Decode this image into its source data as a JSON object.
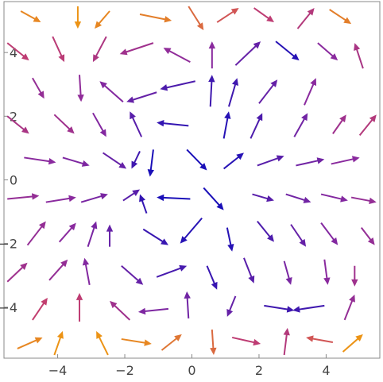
{
  "chart_data": {
    "type": "vector-field",
    "title": "",
    "xlabel": "",
    "ylabel": "",
    "xlim": [
      -5.6,
      5.6
    ],
    "ylim": [
      -5.6,
      5.6
    ],
    "x_ticks": [
      {
        "value": -4,
        "label": "−4"
      },
      {
        "value": -2,
        "label": "−2"
      },
      {
        "value": 0,
        "label": "0"
      },
      {
        "value": 2,
        "label": "2"
      },
      {
        "value": 4,
        "label": "4"
      }
    ],
    "y_ticks": [
      {
        "value": -4,
        "label": "−4"
      },
      {
        "value": -2,
        "label": "−2"
      },
      {
        "value": 0,
        "label": "0"
      },
      {
        "value": 2,
        "label": "2"
      },
      {
        "value": 4,
        "label": "4"
      }
    ],
    "grid": false,
    "color_scale": {
      "note": "arrow colour varies with vector magnitude",
      "low": "#1a0fb8",
      "mid": "#8a2a9e",
      "high_mid": "#c8406a",
      "high": "#f5a800"
    },
    "vectors": [
      {
        "x0": -5.1,
        "y0": 5.3,
        "x1": -4.5,
        "y1": 4.95,
        "m": 0.92
      },
      {
        "x0": -3.4,
        "y0": 5.45,
        "x1": -3.4,
        "y1": 4.75,
        "m": 0.95
      },
      {
        "x0": -2.45,
        "y0": 5.3,
        "x1": -2.9,
        "y1": 4.75,
        "m": 0.92
      },
      {
        "x0": -1.55,
        "y0": 5.2,
        "x1": -0.6,
        "y1": 5.0,
        "m": 0.9
      },
      {
        "x0": -0.1,
        "y0": 5.45,
        "x1": 0.35,
        "y1": 4.7,
        "m": 0.85
      },
      {
        "x0": 0.75,
        "y0": 4.95,
        "x1": 1.4,
        "y1": 5.4,
        "m": 0.8
      },
      {
        "x0": 1.85,
        "y0": 5.4,
        "x1": 2.45,
        "y1": 4.95,
        "m": 0.7
      },
      {
        "x0": 3.15,
        "y0": 4.75,
        "x1": 3.65,
        "y1": 5.4,
        "m": 0.65
      },
      {
        "x0": 4.1,
        "y0": 5.35,
        "x1": 4.75,
        "y1": 4.9,
        "m": 0.9
      },
      {
        "x0": -5.5,
        "y0": 4.3,
        "x1": -4.85,
        "y1": 3.75,
        "m": 0.7
      },
      {
        "x0": -4.15,
        "y0": 4.5,
        "x1": -3.8,
        "y1": 3.7,
        "m": 0.68
      },
      {
        "x0": -2.55,
        "y0": 4.5,
        "x1": -2.95,
        "y1": 3.7,
        "m": 0.62
      },
      {
        "x0": -1.15,
        "y0": 4.3,
        "x1": -2.15,
        "y1": 3.95,
        "m": 0.55
      },
      {
        "x0": -0.05,
        "y0": 3.7,
        "x1": -0.85,
        "y1": 4.15,
        "m": 0.48
      },
      {
        "x0": 0.6,
        "y0": 3.5,
        "x1": 0.6,
        "y1": 4.35,
        "m": 0.45
      },
      {
        "x0": 1.3,
        "y0": 3.6,
        "x1": 2.05,
        "y1": 4.35,
        "m": 0.3
      },
      {
        "x0": 2.5,
        "y0": 4.35,
        "x1": 3.2,
        "y1": 3.75,
        "m": 0.05
      },
      {
        "x0": 3.75,
        "y0": 4.3,
        "x1": 4.35,
        "y1": 3.75,
        "m": 0.45
      },
      {
        "x0": 5.1,
        "y0": 3.5,
        "x1": 4.85,
        "y1": 4.3,
        "m": 0.6
      },
      {
        "x0": -4.75,
        "y0": 3.2,
        "x1": -4.4,
        "y1": 2.55,
        "m": 0.5
      },
      {
        "x0": -3.35,
        "y0": 3.3,
        "x1": -3.3,
        "y1": 2.45,
        "m": 0.48
      },
      {
        "x0": -2.05,
        "y0": 2.45,
        "x1": -2.75,
        "y1": 3.1,
        "m": 0.42
      },
      {
        "x0": -1.05,
        "y0": 2.75,
        "x1": -1.95,
        "y1": 2.45,
        "m": 0.3
      },
      {
        "x0": 0.1,
        "y0": 3.1,
        "x1": -0.95,
        "y1": 2.85,
        "m": 0.2
      },
      {
        "x0": 0.55,
        "y0": 2.3,
        "x1": 0.6,
        "y1": 3.3,
        "m": 0.15
      },
      {
        "x0": 1.1,
        "y0": 2.3,
        "x1": 1.35,
        "y1": 3.2,
        "m": 0.15
      },
      {
        "x0": 2.0,
        "y0": 2.4,
        "x1": 2.55,
        "y1": 3.15,
        "m": 0.3
      },
      {
        "x0": 3.35,
        "y0": 2.35,
        "x1": 3.7,
        "y1": 3.2,
        "m": 0.45
      },
      {
        "x0": -5.5,
        "y0": 2.0,
        "x1": -4.85,
        "y1": 1.45,
        "m": 0.6
      },
      {
        "x0": -4.1,
        "y0": 2.05,
        "x1": -3.5,
        "y1": 1.45,
        "m": 0.55
      },
      {
        "x0": -2.95,
        "y0": 2.1,
        "x1": -2.55,
        "y1": 1.35,
        "m": 0.42
      },
      {
        "x0": -1.5,
        "y0": 1.35,
        "x1": -1.85,
        "y1": 2.15,
        "m": 0.25
      },
      {
        "x0": -0.1,
        "y0": 1.7,
        "x1": -1.05,
        "y1": 1.8,
        "m": 0.1
      },
      {
        "x0": 0.95,
        "y0": 1.3,
        "x1": 1.1,
        "y1": 2.15,
        "m": 0.05
      },
      {
        "x0": 1.75,
        "y0": 1.3,
        "x1": 2.1,
        "y1": 2.1,
        "m": 0.2
      },
      {
        "x0": 3.05,
        "y0": 1.35,
        "x1": 3.45,
        "y1": 2.1,
        "m": 0.35
      },
      {
        "x0": 4.2,
        "y0": 1.45,
        "x1": 4.6,
        "y1": 2.05,
        "m": 0.55
      },
      {
        "x0": 5.0,
        "y0": 1.4,
        "x1": 5.5,
        "y1": 2.05,
        "m": 0.65
      },
      {
        "x0": -5.0,
        "y0": 0.7,
        "x1": -4.05,
        "y1": 0.55,
        "m": 0.45
      },
      {
        "x0": -3.85,
        "y0": 0.7,
        "x1": -3.05,
        "y1": 0.45,
        "m": 0.4
      },
      {
        "x0": -2.65,
        "y0": 0.85,
        "x1": -1.95,
        "y1": 0.35,
        "m": 0.3
      },
      {
        "x0": -1.55,
        "y0": 0.9,
        "x1": -1.8,
        "y1": 0.35,
        "m": 0.15
      },
      {
        "x0": -1.15,
        "y0": 0.95,
        "x1": -1.25,
        "y1": 0.1,
        "m": 0.0
      },
      {
        "x0": -0.15,
        "y0": 0.95,
        "x1": 0.45,
        "y1": 0.3,
        "m": 0.0
      },
      {
        "x0": 0.95,
        "y0": 0.35,
        "x1": 1.55,
        "y1": 0.85,
        "m": 0.05
      },
      {
        "x0": 1.95,
        "y0": 0.45,
        "x1": 2.75,
        "y1": 0.75,
        "m": 0.25
      },
      {
        "x0": 3.1,
        "y0": 0.45,
        "x1": 3.95,
        "y1": 0.65,
        "m": 0.35
      },
      {
        "x0": 4.15,
        "y0": 0.5,
        "x1": 5.0,
        "y1": 0.7,
        "m": 0.45
      },
      {
        "x0": -5.5,
        "y0": -0.6,
        "x1": -4.55,
        "y1": -0.5,
        "m": 0.5
      },
      {
        "x0": -4.35,
        "y0": -0.7,
        "x1": -3.45,
        "y1": -0.55,
        "m": 0.45
      },
      {
        "x0": -3.3,
        "y0": -0.7,
        "x1": -2.5,
        "y1": -0.45,
        "m": 0.38
      },
      {
        "x0": -2.05,
        "y0": -0.65,
        "x1": -1.55,
        "y1": -0.3,
        "m": 0.25
      },
      {
        "x0": -1.35,
        "y0": -1.05,
        "x1": -1.55,
        "y1": -0.45,
        "m": 0.1
      },
      {
        "x0": -0.05,
        "y0": -0.6,
        "x1": -1.05,
        "y1": -0.55,
        "m": 0.0
      },
      {
        "x0": 0.35,
        "y0": -0.25,
        "x1": 0.95,
        "y1": -0.95,
        "m": 0.0
      },
      {
        "x0": 1.8,
        "y0": -0.45,
        "x1": 2.45,
        "y1": -0.65,
        "m": 0.25
      },
      {
        "x0": 2.8,
        "y0": -0.45,
        "x1": 3.55,
        "y1": -0.7,
        "m": 0.35
      },
      {
        "x0": 3.85,
        "y0": -0.45,
        "x1": 4.65,
        "y1": -0.65,
        "m": 0.42
      },
      {
        "x0": 4.75,
        "y0": -0.55,
        "x1": 5.5,
        "y1": -0.7,
        "m": 0.5
      },
      {
        "x0": -4.9,
        "y0": -2.05,
        "x1": -4.35,
        "y1": -1.3,
        "m": 0.5
      },
      {
        "x0": -3.95,
        "y0": -1.95,
        "x1": -3.45,
        "y1": -1.35,
        "m": 0.45
      },
      {
        "x0": -3.1,
        "y0": -2.1,
        "x1": -2.85,
        "y1": -1.3,
        "m": 0.38
      },
      {
        "x0": -2.45,
        "y0": -2.1,
        "x1": -2.45,
        "y1": -1.4,
        "m": 0.3
      },
      {
        "x0": -1.45,
        "y0": -1.55,
        "x1": -0.7,
        "y1": -2.05,
        "m": 0.12
      },
      {
        "x0": 0.3,
        "y0": -1.2,
        "x1": -0.35,
        "y1": -2.0,
        "m": 0.05
      },
      {
        "x0": 1.05,
        "y0": -1.5,
        "x1": 1.2,
        "y1": -2.25,
        "m": 0.05
      },
      {
        "x0": 1.95,
        "y0": -1.3,
        "x1": 2.45,
        "y1": -1.95,
        "m": 0.2
      },
      {
        "x0": 2.95,
        "y0": -1.4,
        "x1": 3.4,
        "y1": -2.1,
        "m": 0.3
      },
      {
        "x0": 3.85,
        "y0": -1.35,
        "x1": 4.35,
        "y1": -2.05,
        "m": 0.42
      },
      {
        "x0": 5.05,
        "y0": -1.5,
        "x1": 5.45,
        "y1": -2.05,
        "m": 0.5
      },
      {
        "x0": -5.5,
        "y0": -3.2,
        "x1": -4.9,
        "y1": -2.6,
        "m": 0.55
      },
      {
        "x0": -4.25,
        "y0": -3.15,
        "x1": -3.7,
        "y1": -2.5,
        "m": 0.5
      },
      {
        "x0": -3.05,
        "y0": -3.3,
        "x1": -3.2,
        "y1": -2.45,
        "m": 0.42
      },
      {
        "x0": -2.1,
        "y0": -2.7,
        "x1": -1.45,
        "y1": -3.3,
        "m": 0.3
      },
      {
        "x0": -1.05,
        "y0": -3.05,
        "x1": -0.15,
        "y1": -2.7,
        "m": 0.18
      },
      {
        "x0": 0.45,
        "y0": -2.7,
        "x1": 0.75,
        "y1": -3.45,
        "m": 0.12
      },
      {
        "x0": 1.55,
        "y0": -2.45,
        "x1": 1.85,
        "y1": -3.25,
        "m": 0.25
      },
      {
        "x0": 2.75,
        "y0": -2.55,
        "x1": 2.95,
        "y1": -3.3,
        "m": 0.38
      },
      {
        "x0": 3.95,
        "y0": -2.5,
        "x1": 4.05,
        "y1": -3.3,
        "m": 0.45
      },
      {
        "x0": 4.85,
        "y0": -2.7,
        "x1": 4.85,
        "y1": -3.35,
        "m": 0.55
      },
      {
        "x0": -4.75,
        "y0": -4.4,
        "x1": -4.3,
        "y1": -3.7,
        "m": 0.72
      },
      {
        "x0": -3.35,
        "y0": -4.45,
        "x1": -3.35,
        "y1": -3.55,
        "m": 0.7
      },
      {
        "x0": -1.85,
        "y0": -4.4,
        "x1": -2.45,
        "y1": -3.8,
        "m": 0.55
      },
      {
        "x0": -0.7,
        "y0": -4.05,
        "x1": -1.6,
        "y1": -4.15,
        "m": 0.4
      },
      {
        "x0": -0.1,
        "y0": -4.35,
        "x1": -0.15,
        "y1": -3.5,
        "m": 0.35
      },
      {
        "x0": 1.3,
        "y0": -3.65,
        "x1": 1.05,
        "y1": -4.3,
        "m": 0.3
      },
      {
        "x0": 2.15,
        "y0": -3.95,
        "x1": 3.05,
        "y1": -4.1,
        "m": 0.15
      },
      {
        "x0": 3.95,
        "y0": -3.95,
        "x1": 3.0,
        "y1": -4.1,
        "m": 0.15
      },
      {
        "x0": 4.55,
        "y0": -4.4,
        "x1": 4.85,
        "y1": -3.6,
        "m": 0.5
      },
      {
        "x0": -5.2,
        "y0": -5.3,
        "x1": -4.45,
        "y1": -4.95,
        "m": 0.92
      },
      {
        "x0": -4.1,
        "y0": -5.5,
        "x1": -3.85,
        "y1": -4.75,
        "m": 0.95
      },
      {
        "x0": -2.5,
        "y0": -5.5,
        "x1": -2.85,
        "y1": -4.75,
        "m": 0.95
      },
      {
        "x0": -2.1,
        "y0": -5.0,
        "x1": -1.2,
        "y1": -5.15,
        "m": 0.92
      },
      {
        "x0": -0.9,
        "y0": -5.35,
        "x1": -0.3,
        "y1": -4.85,
        "m": 0.88
      },
      {
        "x0": 0.6,
        "y0": -4.7,
        "x1": 0.65,
        "y1": -5.5,
        "m": 0.85
      },
      {
        "x0": 1.2,
        "y0": -4.95,
        "x1": 2.05,
        "y1": -5.15,
        "m": 0.7
      },
      {
        "x0": 2.75,
        "y0": -5.5,
        "x1": 2.85,
        "y1": -4.65,
        "m": 0.65
      },
      {
        "x0": 4.2,
        "y0": -5.1,
        "x1": 3.4,
        "y1": -4.95,
        "m": 0.8
      },
      {
        "x0": 4.5,
        "y0": -5.4,
        "x1": 5.1,
        "y1": -4.85,
        "m": 0.95
      }
    ]
  }
}
